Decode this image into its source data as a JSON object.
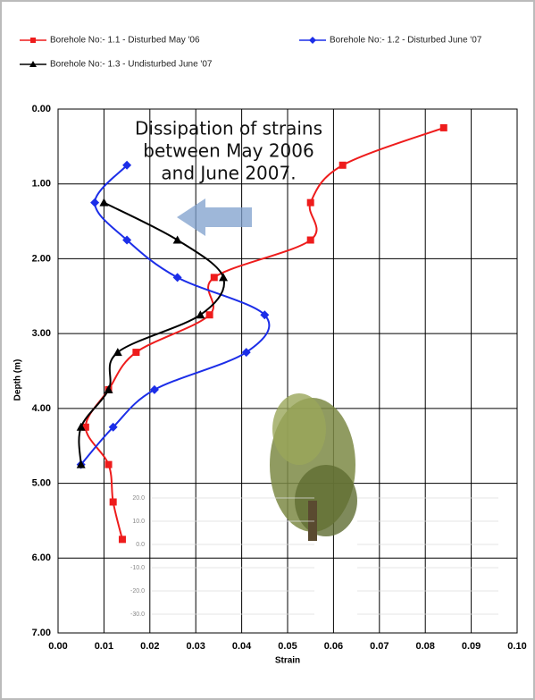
{
  "chart_data": {
    "type": "line",
    "xlabel": "Strain",
    "ylabel": "Depth (m)",
    "annotation": [
      "Dissipation of strains",
      "between May 2006",
      "and June 2007."
    ],
    "xlim": [
      0,
      0.1
    ],
    "xticks": [
      {
        "value": 0,
        "label": "0.00"
      },
      {
        "value": 0.01,
        "label": "0.01"
      },
      {
        "value": 0.02,
        "label": "0.02"
      },
      {
        "value": 0.03,
        "label": "0.03"
      },
      {
        "value": 0.04,
        "label": "0.04"
      },
      {
        "value": 0.05,
        "label": "0.05"
      },
      {
        "value": 0.06,
        "label": "0.06"
      },
      {
        "value": 0.07,
        "label": "0.07"
      },
      {
        "value": 0.08,
        "label": "0.08"
      },
      {
        "value": 0.09,
        "label": "0.09"
      },
      {
        "value": 0.1,
        "label": "0.10"
      }
    ],
    "ylim": [
      0,
      7
    ],
    "y_inverted": true,
    "yticks": [
      {
        "value": 0,
        "label": "0.00"
      },
      {
        "value": 1,
        "label": "1.00"
      },
      {
        "value": 2,
        "label": "2.00"
      },
      {
        "value": 3,
        "label": "3.00"
      },
      {
        "value": 4,
        "label": "4.00"
      },
      {
        "value": 5,
        "label": "5.00"
      },
      {
        "value": 6,
        "label": "6.00"
      },
      {
        "value": 7,
        "label": "7.00"
      }
    ],
    "grid": true,
    "series": [
      {
        "name": "Borehole No:- 1.1 - Disturbed May '06",
        "color": "#ee1c1c",
        "marker": "square",
        "x": [
          0.084,
          0.062,
          0.055,
          0.055,
          0.034,
          0.033,
          0.017,
          0.011,
          0.006,
          0.011,
          0.012,
          0.014
        ],
        "values": [
          0.25,
          0.75,
          1.25,
          1.75,
          2.25,
          2.75,
          3.25,
          3.75,
          4.25,
          4.75,
          5.25,
          5.75
        ]
      },
      {
        "name": "Borehole No:- 1.2 - Disturbed June '07",
        "color": "#1c2ee8",
        "marker": "diamond",
        "x": [
          0.015,
          0.008,
          0.015,
          0.026,
          0.045,
          0.041,
          0.021,
          0.012,
          0.005
        ],
        "values": [
          0.75,
          1.25,
          1.75,
          2.25,
          2.75,
          3.25,
          3.75,
          4.25,
          4.75
        ]
      },
      {
        "name": "Borehole No:- 1.3 - Undisturbed June '07",
        "color": "#000000",
        "marker": "triangle",
        "x": [
          0.01,
          0.026,
          0.036,
          0.031,
          0.013,
          0.011,
          0.005,
          0.005
        ],
        "values": [
          1.25,
          1.75,
          2.25,
          2.75,
          3.25,
          3.75,
          4.25,
          4.75
        ]
      }
    ],
    "inset": {
      "yticks": [
        {
          "value": 20,
          "label": "20.0"
        },
        {
          "value": 10,
          "label": "10.0"
        },
        {
          "value": 0,
          "label": "0.0"
        },
        {
          "value": -10,
          "label": "-10.0"
        },
        {
          "value": -20,
          "label": "-20.0"
        },
        {
          "value": -30,
          "label": "-30.0"
        }
      ]
    }
  }
}
